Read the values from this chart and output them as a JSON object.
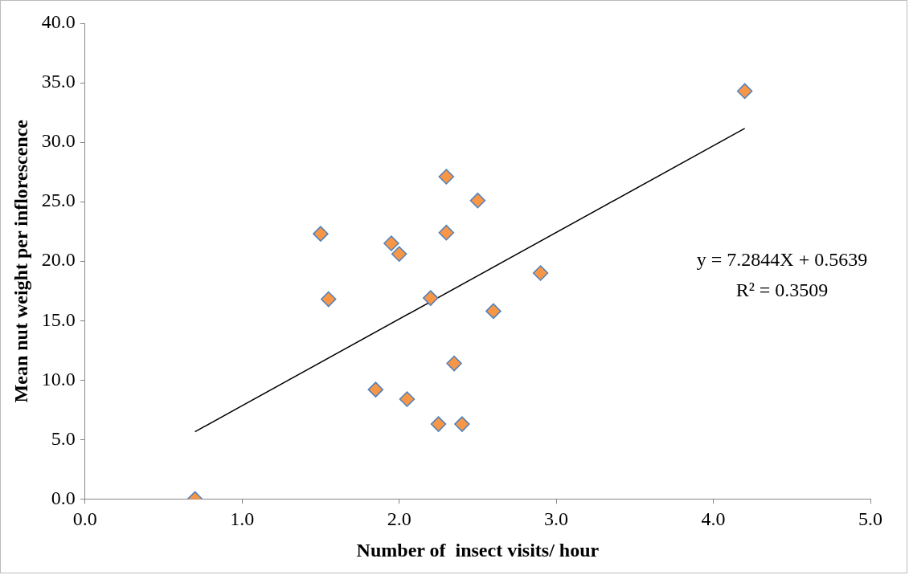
{
  "chart_data": {
    "type": "scatter",
    "xlabel": "Number of  insect visits/ hour",
    "ylabel": "Mean nut weight per inflorescence",
    "xlim": [
      0,
      5
    ],
    "xticks": [
      {
        "value": 0,
        "label": "0.0"
      },
      {
        "value": 1,
        "label": "1.0"
      },
      {
        "value": 2,
        "label": "2.0"
      },
      {
        "value": 3,
        "label": "3.0"
      },
      {
        "value": 4,
        "label": "4.0"
      },
      {
        "value": 5,
        "label": "5.0"
      }
    ],
    "ylim": [
      0,
      40
    ],
    "yticks": [
      {
        "value": 0,
        "label": "0.0"
      },
      {
        "value": 5,
        "label": "5.0"
      },
      {
        "value": 10,
        "label": "10.0"
      },
      {
        "value": 15,
        "label": "15.0"
      },
      {
        "value": 20,
        "label": "20.0"
      },
      {
        "value": 25,
        "label": "25.0"
      },
      {
        "value": 30,
        "label": "30.0"
      },
      {
        "value": 35,
        "label": "35.0"
      },
      {
        "value": 40,
        "label": "40.0"
      }
    ],
    "marker": "diamond",
    "grid": false,
    "legend": false,
    "series": [
      {
        "color": "#f79646",
        "x": [
          0.7,
          1.5,
          1.55,
          1.85,
          1.95,
          2.0,
          2.05,
          2.2,
          2.25,
          2.3,
          2.3,
          2.35,
          2.4,
          2.5,
          2.6,
          2.9,
          4.2
        ],
        "values": [
          0,
          22.3,
          16.8,
          9.2,
          21.5,
          20.6,
          8.4,
          16.9,
          6.3,
          27.1,
          22.4,
          11.4,
          6.3,
          25.1,
          15.8,
          19.0,
          34.3
        ]
      },
      {
        "type": "line",
        "color": "#000000",
        "marker": "none",
        "x": [
          0.7,
          4.2
        ],
        "values": [
          5.66,
          31.16
        ]
      }
    ],
    "annotations": [
      "y = 7.2844X + 0.5639",
      "R² = 0.3509"
    ]
  }
}
